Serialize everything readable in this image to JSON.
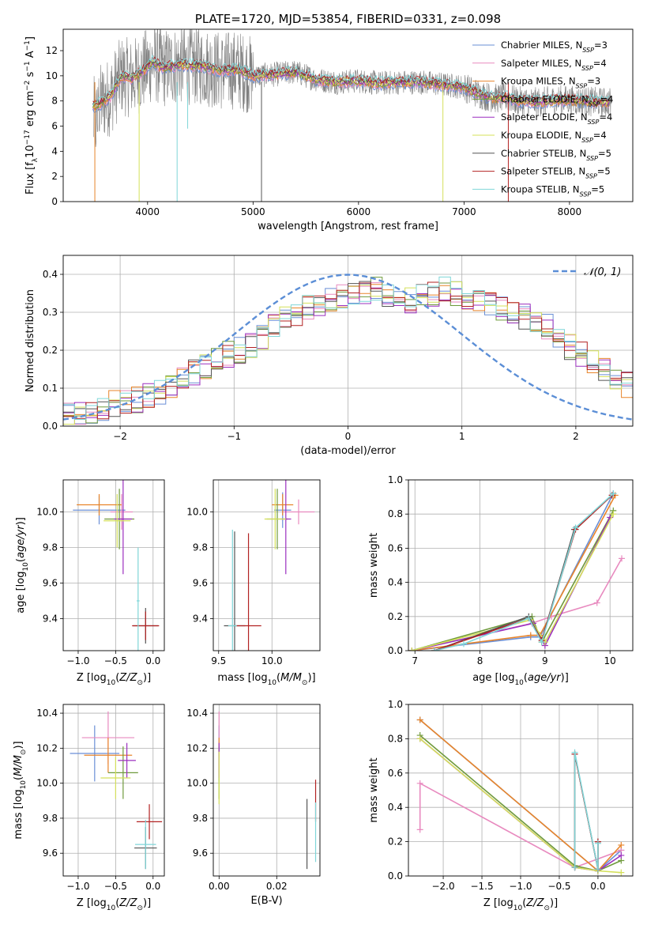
{
  "colors": {
    "chabrier_miles": "#6a8fd6",
    "salpeter_miles": "#e88abf",
    "kroupa_miles": "#e8852b",
    "chabrier_elodie": "#6f9a3c",
    "salpeter_elodie": "#9b2fbf",
    "kroupa_elodie": "#d4e05a",
    "chabrier_stelib": "#555555",
    "salpeter_stelib": "#b22222",
    "kroupa_stelib": "#7fd6d8",
    "normal_curve": "#5b8ed6",
    "grid": "#b0b0b0"
  },
  "legend_entries": [
    {
      "name": "Chabrier MILES",
      "nssp": "3",
      "color_key": "chabrier_miles"
    },
    {
      "name": "Salpeter MILES",
      "nssp": "4",
      "color_key": "salpeter_miles"
    },
    {
      "name": "Kroupa MILES",
      "nssp": "3",
      "color_key": "kroupa_miles"
    },
    {
      "name": "Chabrier ELODIE",
      "nssp": "4",
      "color_key": "chabrier_elodie"
    },
    {
      "name": "Salpeter ELODIE",
      "nssp": "4",
      "color_key": "salpeter_elodie"
    },
    {
      "name": "Kroupa ELODIE",
      "nssp": "4",
      "color_key": "kroupa_elodie"
    },
    {
      "name": "Chabrier STELIB",
      "nssp": "5",
      "color_key": "chabrier_stelib"
    },
    {
      "name": "Salpeter STELIB",
      "nssp": "5",
      "color_key": "salpeter_stelib"
    },
    {
      "name": "Kroupa STELIB",
      "nssp": "5",
      "color_key": "kroupa_stelib"
    }
  ],
  "legend_nssp_prefix": "N",
  "legend_nssp_sub": "SSP",
  "chart_data": [
    {
      "id": "spectrum",
      "type": "line",
      "title": "PLATE=1720, MJD=53854, FIBERID=0331, z=0.098",
      "xlabel": "wavelength [Angstrom, rest frame]",
      "ylabel": "Flux [f_λ10^-17 erg cm^-2 s^-1 A^-1]",
      "ylabel_parts": {
        "a": "Flux [f",
        "b": "λ",
        "c": "10",
        "d": "−17",
        "e": " erg cm",
        "f": "−2",
        "g": " s",
        "h": "−1",
        "i": " A",
        "j": "−1",
        "k": "]"
      },
      "xlim": [
        3200,
        8600
      ],
      "ylim": [
        0,
        13.7
      ],
      "xticks": [
        4000,
        5000,
        6000,
        7000,
        8000
      ],
      "yticks": [
        0,
        2,
        4,
        6,
        8,
        10,
        12
      ],
      "continuum_model": {
        "x": [
          3450,
          3550,
          3650,
          3750,
          3850,
          3950,
          4050,
          4150,
          4300,
          4500,
          4700,
          4850,
          5000,
          5200,
          5400,
          5600,
          5800,
          6000,
          6200,
          6400,
          6600,
          6800,
          7000,
          7100,
          7200,
          7300,
          7400,
          7500,
          7700,
          7900,
          8100,
          8300
        ],
        "y": [
          7.4,
          7.8,
          8.4,
          10.0,
          9.8,
          10.3,
          11.1,
          10.6,
          10.9,
          10.8,
          10.4,
          10.5,
          10.0,
          10.1,
          10.3,
          9.7,
          9.5,
          9.6,
          9.4,
          9.5,
          9.5,
          9.3,
          9.1,
          8.7,
          8.4,
          8.2,
          8.3,
          8.0,
          7.9,
          8.1,
          8.0,
          7.9
        ]
      },
      "data_spectrum_noise": "high scatter below 5000 A, moderate above",
      "grid": false,
      "legend": "right"
    },
    {
      "id": "residuals",
      "type": "line",
      "xlabel": "(data-model)/error",
      "ylabel": "Normed distribution",
      "xlim": [
        -2.5,
        2.5
      ],
      "ylim": [
        0,
        0.45
      ],
      "xticks": [
        -2,
        -1,
        0,
        1,
        2
      ],
      "yticks": [
        0.0,
        0.1,
        0.2,
        0.3,
        0.4
      ],
      "legend_label": "𝒩(0, 1)",
      "bin_edges_start": -2.5,
      "bin_width": 0.1,
      "histogram_reference": [
        0.03,
        0.03,
        0.04,
        0.05,
        0.06,
        0.06,
        0.07,
        0.08,
        0.09,
        0.1,
        0.12,
        0.14,
        0.16,
        0.17,
        0.19,
        0.2,
        0.21,
        0.23,
        0.26,
        0.28,
        0.29,
        0.31,
        0.32,
        0.33,
        0.34,
        0.35,
        0.35,
        0.36,
        0.35,
        0.34,
        0.33,
        0.34,
        0.35,
        0.36,
        0.35,
        0.34,
        0.33,
        0.32,
        0.31,
        0.3,
        0.29,
        0.28,
        0.26,
        0.24,
        0.21,
        0.19,
        0.17,
        0.15,
        0.13,
        0.11
      ],
      "grid": true,
      "legend": "top-right"
    },
    {
      "id": "age_vs_Z",
      "type": "scatter",
      "xlabel": "Z [log10(Z/Z☉)]",
      "ylabel": "age  [log10(age/yr)]",
      "xlim": [
        -1.2,
        0.15
      ],
      "ylim": [
        9.22,
        10.18
      ],
      "xticks": [
        -1.0,
        -0.5,
        0.0
      ],
      "yticks": [
        9.4,
        9.6,
        9.8,
        10.0
      ],
      "points": [
        {
          "c": "chabrier_miles",
          "x": -0.72,
          "y": 10.01,
          "xerr": 0.35,
          "yerr": 0.08
        },
        {
          "c": "salpeter_miles",
          "x": -0.42,
          "y": 10.0,
          "xerr": 0.15,
          "yerr": 0.1
        },
        {
          "c": "kroupa_miles",
          "x": -0.72,
          "y": 10.04,
          "xerr": 0.3,
          "yerr": 0.06
        },
        {
          "c": "chabrier_elodie",
          "x": -0.45,
          "y": 9.96,
          "xerr": 0.2,
          "yerr": 0.17
        },
        {
          "c": "salpeter_elodie",
          "x": -0.4,
          "y": 9.96,
          "xerr": 0.12,
          "yerr": 0.31
        },
        {
          "c": "kroupa_elodie",
          "x": -0.48,
          "y": 9.95,
          "xerr": 0.18,
          "yerr": 0.15
        },
        {
          "c": "chabrier_stelib",
          "x": -0.1,
          "y": 9.36,
          "xerr": 0.17,
          "yerr": 0.1
        },
        {
          "c": "salpeter_stelib",
          "x": -0.1,
          "y": 9.36,
          "xerr": 0.18,
          "yerr": 0.08
        },
        {
          "c": "kroupa_stelib",
          "x": -0.2,
          "y": 9.5,
          "xerr": 0.02,
          "yerr": 0.3
        }
      ],
      "grid": true
    },
    {
      "id": "age_vs_mass",
      "type": "scatter",
      "xlabel": "mass [log10(M/M☉)]",
      "ylabel": "",
      "xlim": [
        9.45,
        10.45
      ],
      "ylim": [
        9.22,
        10.18
      ],
      "xticks": [
        9.5,
        10.0
      ],
      "yticks": [
        9.4,
        9.6,
        9.8,
        10.0
      ],
      "points": [
        {
          "c": "chabrier_miles",
          "x": 10.1,
          "y": 10.01,
          "xerr": 0.08,
          "yerr": 0.1
        },
        {
          "c": "salpeter_miles",
          "x": 10.25,
          "y": 10.0,
          "xerr": 0.15,
          "yerr": 0.07
        },
        {
          "c": "kroupa_miles",
          "x": 10.1,
          "y": 10.04,
          "xerr": 0.1,
          "yerr": 0.06
        },
        {
          "c": "chabrier_elodie",
          "x": 10.05,
          "y": 9.96,
          "xerr": 0.1,
          "yerr": 0.17
        },
        {
          "c": "salpeter_elodie",
          "x": 10.13,
          "y": 9.96,
          "xerr": 0.05,
          "yerr": 0.31
        },
        {
          "c": "kroupa_elodie",
          "x": 10.03,
          "y": 9.96,
          "xerr": 0.1,
          "yerr": 0.17
        },
        {
          "c": "chabrier_stelib",
          "x": 9.65,
          "y": 9.36,
          "xerr": 0.1,
          "yerr": 0.53
        },
        {
          "c": "salpeter_stelib",
          "x": 9.78,
          "y": 9.36,
          "xerr": 0.12,
          "yerr": 0.52
        },
        {
          "c": "kroupa_stelib",
          "x": 9.63,
          "y": 9.36,
          "xerr": 0.04,
          "yerr": 0.54
        }
      ],
      "grid": true
    },
    {
      "id": "weight_vs_age",
      "type": "line",
      "xlabel": "age  [log10(age/yr)]",
      "ylabel": "mass weight",
      "xlim": [
        6.9,
        10.35
      ],
      "ylim": [
        0,
        1.0
      ],
      "xticks": [
        7,
        8,
        9,
        10
      ],
      "yticks": [
        0.0,
        0.2,
        0.4,
        0.6,
        0.8,
        1.0
      ],
      "series": [
        {
          "c": "chabrier_miles",
          "x": [
            6.95,
            8.78,
            8.92,
            10.05
          ],
          "y": [
            0.0,
            0.08,
            0.08,
            0.92
          ]
        },
        {
          "c": "salpeter_miles",
          "x": [
            6.95,
            8.8,
            9.1,
            9.8,
            10.18
          ],
          "y": [
            0.0,
            0.16,
            0.2,
            0.28,
            0.54
          ]
        },
        {
          "c": "kroupa_miles",
          "x": [
            6.95,
            8.78,
            8.92,
            10.08
          ],
          "y": [
            0.0,
            0.09,
            0.09,
            0.91
          ]
        },
        {
          "c": "chabrier_elodie",
          "x": [
            6.95,
            8.8,
            8.95,
            10.05
          ],
          "y": [
            0.0,
            0.2,
            0.05,
            0.82
          ]
        },
        {
          "c": "salpeter_elodie",
          "x": [
            6.95,
            8.82,
            9.0,
            10.0
          ],
          "y": [
            0.0,
            0.16,
            0.03,
            0.78
          ]
        },
        {
          "c": "kroupa_elodie",
          "x": [
            6.95,
            8.78,
            9.0,
            10.05
          ],
          "y": [
            0.0,
            0.18,
            0.05,
            0.8
          ]
        },
        {
          "c": "chabrier_stelib",
          "x": [
            7.3,
            8.75,
            8.95,
            9.45,
            10.03
          ],
          "y": [
            0.0,
            0.2,
            0.06,
            0.71,
            0.91
          ]
        },
        {
          "c": "salpeter_stelib",
          "x": [
            7.3,
            8.75,
            8.95,
            9.47,
            10.03
          ],
          "y": [
            0.0,
            0.19,
            0.06,
            0.71,
            0.91
          ]
        },
        {
          "c": "kroupa_stelib",
          "x": [
            7.3,
            7.75,
            8.75,
            8.95,
            9.47,
            10.05
          ],
          "y": [
            0.0,
            0.04,
            0.19,
            0.05,
            0.72,
            0.92
          ]
        }
      ],
      "grid": true
    },
    {
      "id": "mass_vs_Z",
      "type": "scatter",
      "xlabel": "Z [log10(Z/Z☉)]",
      "ylabel": "mass [log10(M/M☉)]",
      "xlim": [
        -1.2,
        0.15
      ],
      "ylim": [
        9.47,
        10.45
      ],
      "xticks": [
        -1.0,
        -0.5,
        0.0
      ],
      "yticks": [
        9.6,
        9.8,
        10.0,
        10.2,
        10.4
      ],
      "points": [
        {
          "c": "chabrier_miles",
          "x": -0.78,
          "y": 10.17,
          "xerr": 0.33,
          "yerr": 0.16
        },
        {
          "c": "salpeter_miles",
          "x": -0.6,
          "y": 10.26,
          "xerr": 0.35,
          "yerr": 0.15
        },
        {
          "c": "kroupa_miles",
          "x": -0.6,
          "y": 10.16,
          "xerr": 0.32,
          "yerr": 0.1
        },
        {
          "c": "chabrier_elodie",
          "x": -0.4,
          "y": 10.06,
          "xerr": 0.2,
          "yerr": 0.15
        },
        {
          "c": "salpeter_elodie",
          "x": -0.35,
          "y": 10.13,
          "xerr": 0.12,
          "yerr": 0.1
        },
        {
          "c": "kroupa_elodie",
          "x": -0.5,
          "y": 10.03,
          "xerr": 0.2,
          "yerr": 0.12
        },
        {
          "c": "chabrier_stelib",
          "x": -0.1,
          "y": 9.63,
          "xerr": 0.15,
          "yerr": 0.12
        },
        {
          "c": "salpeter_stelib",
          "x": -0.05,
          "y": 9.78,
          "xerr": 0.17,
          "yerr": 0.1
        },
        {
          "c": "kroupa_stelib",
          "x": -0.1,
          "y": 9.65,
          "xerr": 0.14,
          "yerr": 0.14
        }
      ],
      "grid": true
    },
    {
      "id": "mass_vs_ebv",
      "type": "scatter",
      "xlabel": "E(B-V)",
      "ylabel": "",
      "xlim": [
        -0.002,
        0.035
      ],
      "ylim": [
        9.47,
        10.45
      ],
      "xticks": [
        0.0,
        0.02
      ],
      "yticks": [
        9.6,
        9.8,
        10.0,
        10.2,
        10.4
      ],
      "points": [
        {
          "c": "chabrier_miles",
          "x": 0.0,
          "y": 10.17,
          "xerr": 0,
          "yerr": 0.16
        },
        {
          "c": "salpeter_miles",
          "x": 0.0,
          "y": 10.26,
          "xerr": 0,
          "yerr": 0.15
        },
        {
          "c": "kroupa_miles",
          "x": 0.0,
          "y": 10.16,
          "xerr": 0,
          "yerr": 0.1
        },
        {
          "c": "chabrier_elodie",
          "x": 0.0,
          "y": 10.06,
          "xerr": 0,
          "yerr": 0.15
        },
        {
          "c": "salpeter_elodie",
          "x": 0.0,
          "y": 10.13,
          "xerr": 0,
          "yerr": 0.1
        },
        {
          "c": "kroupa_elodie",
          "x": 0.0,
          "y": 10.03,
          "xerr": 0,
          "yerr": 0.15
        },
        {
          "c": "chabrier_stelib",
          "x": 0.0305,
          "y": 9.71,
          "xerr": 0,
          "yerr": 0.2
        },
        {
          "c": "salpeter_stelib",
          "x": 0.0335,
          "y": 9.9,
          "xerr": 0,
          "yerr": 0.12
        },
        {
          "c": "kroupa_stelib",
          "x": 0.0335,
          "y": 9.72,
          "xerr": 0,
          "yerr": 0.17
        }
      ],
      "grid": true
    },
    {
      "id": "weight_vs_Z",
      "type": "line",
      "xlabel": "Z [log10(Z/Z☉)]",
      "ylabel": "mass weight",
      "xlim": [
        -2.45,
        0.45
      ],
      "ylim": [
        0,
        1.0
      ],
      "xticks": [
        -2.0,
        -1.5,
        -1.0,
        -0.5,
        0.0
      ],
      "yticks": [
        0.0,
        0.2,
        0.4,
        0.6,
        0.8,
        1.0
      ],
      "series": [
        {
          "c": "chabrier_miles",
          "x": [
            -2.3,
            0.0,
            0.3
          ],
          "y": [
            0.91,
            0.03,
            0.15
          ]
        },
        {
          "c": "salpeter_miles",
          "x": [
            -2.3,
            -2.3,
            -0.3,
            0.3
          ],
          "y": [
            0.27,
            0.54,
            0.05,
            0.15
          ]
        },
        {
          "c": "kroupa_miles",
          "x": [
            -2.3,
            0.0,
            0.3
          ],
          "y": [
            0.91,
            0.03,
            0.18
          ]
        },
        {
          "c": "chabrier_elodie",
          "x": [
            -2.3,
            -0.3,
            0.0,
            0.3
          ],
          "y": [
            0.82,
            0.06,
            0.03,
            0.09
          ]
        },
        {
          "c": "salpeter_elodie",
          "x": [
            -2.3,
            -0.3,
            0.0,
            0.3
          ],
          "y": [
            0.8,
            0.05,
            0.03,
            0.12
          ]
        },
        {
          "c": "kroupa_elodie",
          "x": [
            -2.3,
            -0.3,
            0.0,
            0.3
          ],
          "y": [
            0.8,
            0.05,
            0.03,
            0.02
          ]
        },
        {
          "c": "chabrier_stelib",
          "x": [
            -0.3,
            -0.3,
            0.0,
            0.0
          ],
          "y": [
            0.05,
            0.71,
            0.04,
            0.2
          ]
        },
        {
          "c": "salpeter_stelib",
          "x": [
            -0.3,
            -0.3,
            0.0,
            0.0
          ],
          "y": [
            0.05,
            0.71,
            0.04,
            0.2
          ]
        },
        {
          "c": "kroupa_stelib",
          "x": [
            -0.3,
            -0.3,
            0.0,
            0.0
          ],
          "y": [
            0.05,
            0.72,
            0.04,
            0.19
          ]
        }
      ],
      "grid": true
    }
  ]
}
